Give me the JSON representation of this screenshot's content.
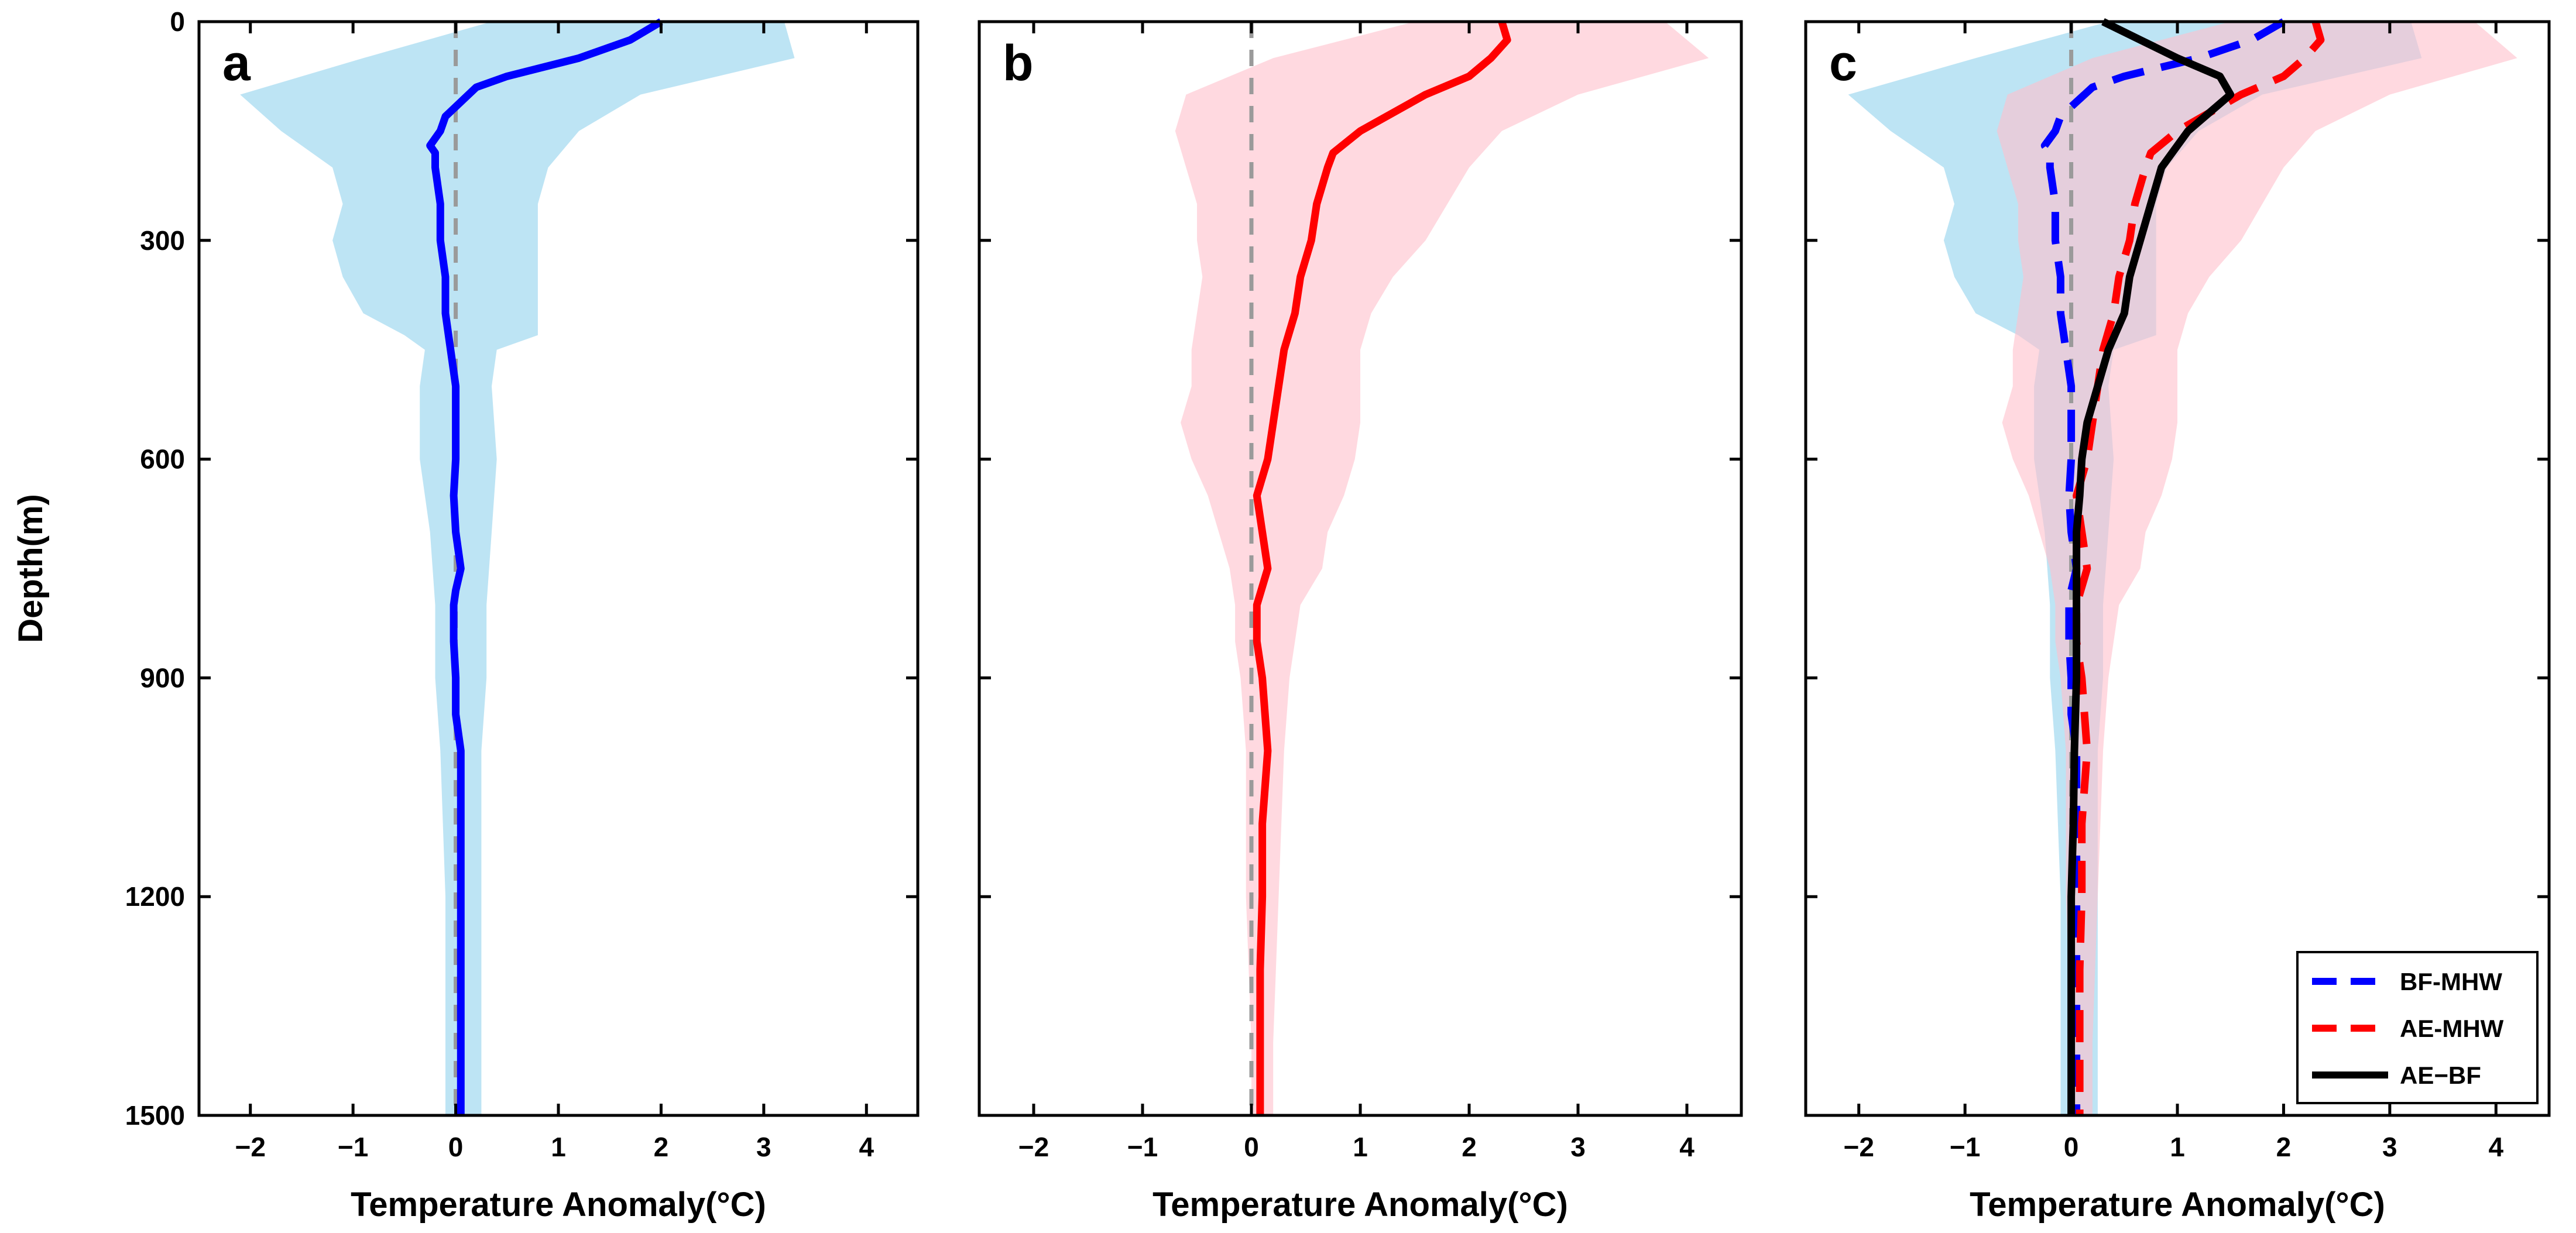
{
  "chart_data": [
    {
      "type": "line",
      "panel_label": "a",
      "xlabel": "Temperature Anomaly(°C)",
      "ylabel": "Depth(m)",
      "xlim": [
        -2.5,
        4.5
      ],
      "ylim": [
        0,
        1500
      ],
      "y_reversed": true,
      "xticks": [
        -2,
        -1,
        0,
        1,
        2,
        3,
        4
      ],
      "xtick_labels": [
        "−2",
        "−1",
        "0",
        "1",
        "2",
        "3",
        "4"
      ],
      "yticks": [
        0,
        300,
        600,
        900,
        1200,
        1500
      ],
      "ytick_labels": [
        "0",
        "300",
        "600",
        "900",
        "1200",
        "1500"
      ],
      "reference_line": {
        "x": 0,
        "style": "dashed",
        "color": "#9a9a9a"
      },
      "series": [
        {
          "name": "BF-MHW",
          "color": "#0000ff",
          "style": "solid",
          "depth": [
            0,
            25,
            50,
            75,
            90,
            110,
            130,
            150,
            170,
            180,
            200,
            250,
            300,
            350,
            400,
            430,
            450,
            500,
            550,
            600,
            650,
            700,
            750,
            780,
            800,
            850,
            900,
            950,
            1000,
            1100,
            1200,
            1300,
            1400,
            1500
          ],
          "values": [
            2.0,
            1.7,
            1.2,
            0.5,
            0.2,
            0.05,
            -0.1,
            -0.15,
            -0.25,
            -0.2,
            -0.2,
            -0.15,
            -0.15,
            -0.1,
            -0.1,
            -0.07,
            -0.05,
            0.0,
            0.0,
            0.0,
            -0.02,
            0.0,
            0.05,
            0.0,
            -0.02,
            -0.02,
            0.0,
            0.0,
            0.05,
            0.05,
            0.05,
            0.05,
            0.05,
            0.05
          ],
          "band": {
            "color": "#87ceeb",
            "opacity": 0.55,
            "depth": [
              0,
              50,
              100,
              150,
              200,
              250,
              300,
              350,
              400,
              430,
              450,
              500,
              600,
              700,
              800,
              900,
              1000,
              1200,
              1400,
              1500
            ],
            "lower": [
              0.35,
              -0.9,
              -2.1,
              -1.7,
              -1.2,
              -1.1,
              -1.2,
              -1.1,
              -0.9,
              -0.5,
              -0.3,
              -0.35,
              -0.35,
              -0.25,
              -0.2,
              -0.2,
              -0.15,
              -0.1,
              -0.1,
              -0.1
            ],
            "upper": [
              3.2,
              3.3,
              1.8,
              1.2,
              0.9,
              0.8,
              0.8,
              0.8,
              0.8,
              0.8,
              0.4,
              0.35,
              0.4,
              0.35,
              0.3,
              0.3,
              0.25,
              0.25,
              0.25,
              0.25
            ]
          }
        }
      ]
    },
    {
      "type": "line",
      "panel_label": "b",
      "xlabel": "Temperature Anomaly(°C)",
      "ylabel": "",
      "xlim": [
        -2.5,
        4.5
      ],
      "ylim": [
        0,
        1500
      ],
      "y_reversed": true,
      "xticks": [
        -2,
        -1,
        0,
        1,
        2,
        3,
        4
      ],
      "xtick_labels": [
        "−2",
        "−1",
        "0",
        "1",
        "2",
        "3",
        "4"
      ],
      "yticks": [
        0,
        300,
        600,
        900,
        1200,
        1500
      ],
      "ytick_labels": [],
      "reference_line": {
        "x": 0,
        "style": "dashed",
        "color": "#9a9a9a"
      },
      "series": [
        {
          "name": "AE-MHW",
          "color": "#ff0000",
          "style": "solid",
          "depth": [
            0,
            25,
            50,
            75,
            100,
            150,
            180,
            200,
            250,
            300,
            350,
            400,
            450,
            500,
            550,
            600,
            650,
            700,
            750,
            800,
            850,
            900,
            1000,
            1100,
            1200,
            1300,
            1400,
            1500
          ],
          "values": [
            2.3,
            2.35,
            2.2,
            2.0,
            1.6,
            1.0,
            0.75,
            0.7,
            0.6,
            0.55,
            0.45,
            0.4,
            0.3,
            0.25,
            0.2,
            0.15,
            0.05,
            0.1,
            0.15,
            0.05,
            0.05,
            0.1,
            0.15,
            0.1,
            0.1,
            0.08,
            0.08,
            0.08
          ],
          "band": {
            "color": "#ffc0cb",
            "opacity": 0.6,
            "depth": [
              0,
              50,
              100,
              150,
              200,
              250,
              300,
              350,
              400,
              450,
              500,
              550,
              600,
              650,
              700,
              750,
              800,
              850,
              900,
              1000,
              1200,
              1400,
              1500
            ],
            "lower": [
              1.5,
              0.2,
              -0.6,
              -0.7,
              -0.6,
              -0.5,
              -0.5,
              -0.45,
              -0.5,
              -0.55,
              -0.55,
              -0.65,
              -0.55,
              -0.4,
              -0.3,
              -0.2,
              -0.15,
              -0.15,
              -0.1,
              -0.05,
              -0.05,
              0.0,
              0.0
            ],
            "upper": [
              3.8,
              4.2,
              3.0,
              2.3,
              2.0,
              1.8,
              1.6,
              1.3,
              1.1,
              1.0,
              1.0,
              1.0,
              0.95,
              0.85,
              0.7,
              0.65,
              0.45,
              0.4,
              0.35,
              0.3,
              0.25,
              0.2,
              0.2
            ]
          }
        }
      ]
    },
    {
      "type": "line",
      "panel_label": "c",
      "xlabel": "Temperature Anomaly(°C)",
      "ylabel": "",
      "xlim": [
        -2.5,
        4.5
      ],
      "ylim": [
        0,
        1500
      ],
      "y_reversed": true,
      "xticks": [
        -2,
        -1,
        0,
        1,
        2,
        3,
        4
      ],
      "xtick_labels": [
        "−2",
        "−1",
        "0",
        "1",
        "2",
        "3",
        "4"
      ],
      "yticks": [
        0,
        300,
        600,
        900,
        1200,
        1500
      ],
      "ytick_labels": [],
      "reference_line": {
        "x": 0,
        "style": "dashed",
        "color": "#9a9a9a"
      },
      "legend": {
        "position": "bottom-right",
        "entries": [
          {
            "label": "BF-MHW",
            "color": "#0000ff",
            "style": "dashed"
          },
          {
            "label": "AE-MHW",
            "color": "#ff0000",
            "style": "dashed"
          },
          {
            "label": "AE−BF",
            "color": "#000000",
            "style": "solid"
          }
        ]
      },
      "series": [
        {
          "name": "BF-MHW",
          "color": "#0000ff",
          "style": "dashed",
          "depth": [
            0,
            25,
            50,
            75,
            90,
            110,
            130,
            150,
            170,
            180,
            200,
            250,
            300,
            350,
            400,
            430,
            450,
            500,
            550,
            600,
            650,
            700,
            750,
            780,
            800,
            850,
            900,
            950,
            1000,
            1100,
            1200,
            1300,
            1400,
            1500
          ],
          "values": [
            2.0,
            1.7,
            1.2,
            0.5,
            0.2,
            0.05,
            -0.1,
            -0.15,
            -0.25,
            -0.2,
            -0.2,
            -0.15,
            -0.15,
            -0.1,
            -0.1,
            -0.07,
            -0.05,
            0.0,
            0.0,
            0.0,
            -0.02,
            0.0,
            0.05,
            0.0,
            -0.02,
            -0.02,
            0.0,
            0.0,
            0.05,
            0.05,
            0.05,
            0.05,
            0.05,
            0.05
          ],
          "band": {
            "color": "#87ceeb",
            "opacity": 0.55,
            "depth": [
              0,
              50,
              100,
              150,
              200,
              250,
              300,
              350,
              400,
              430,
              450,
              500,
              600,
              700,
              800,
              900,
              1000,
              1200,
              1400,
              1500
            ],
            "lower": [
              0.35,
              -0.9,
              -2.1,
              -1.7,
              -1.2,
              -1.1,
              -1.2,
              -1.1,
              -0.9,
              -0.5,
              -0.3,
              -0.35,
              -0.35,
              -0.25,
              -0.2,
              -0.2,
              -0.15,
              -0.1,
              -0.1,
              -0.1
            ],
            "upper": [
              3.2,
              3.3,
              1.8,
              1.2,
              0.9,
              0.8,
              0.8,
              0.8,
              0.8,
              0.8,
              0.4,
              0.35,
              0.4,
              0.35,
              0.3,
              0.3,
              0.25,
              0.25,
              0.25,
              0.25
            ]
          }
        },
        {
          "name": "AE-MHW",
          "color": "#ff0000",
          "style": "dashed",
          "depth": [
            0,
            25,
            50,
            75,
            100,
            150,
            180,
            200,
            250,
            300,
            350,
            400,
            450,
            500,
            550,
            600,
            650,
            700,
            750,
            800,
            850,
            900,
            1000,
            1100,
            1200,
            1300,
            1400,
            1500
          ],
          "values": [
            2.3,
            2.35,
            2.2,
            2.0,
            1.6,
            1.0,
            0.75,
            0.7,
            0.6,
            0.55,
            0.45,
            0.4,
            0.3,
            0.25,
            0.2,
            0.15,
            0.05,
            0.1,
            0.15,
            0.05,
            0.05,
            0.1,
            0.15,
            0.1,
            0.1,
            0.08,
            0.08,
            0.08
          ],
          "band": {
            "color": "#ffc0cb",
            "opacity": 0.6,
            "depth": [
              0,
              50,
              100,
              150,
              200,
              250,
              300,
              350,
              400,
              450,
              500,
              550,
              600,
              650,
              700,
              750,
              800,
              850,
              900,
              1000,
              1200,
              1400,
              1500
            ],
            "lower": [
              1.5,
              0.2,
              -0.6,
              -0.7,
              -0.6,
              -0.5,
              -0.5,
              -0.45,
              -0.5,
              -0.55,
              -0.55,
              -0.65,
              -0.55,
              -0.4,
              -0.3,
              -0.2,
              -0.15,
              -0.15,
              -0.1,
              -0.05,
              -0.05,
              0.0,
              0.0
            ],
            "upper": [
              3.8,
              4.2,
              3.0,
              2.3,
              2.0,
              1.8,
              1.6,
              1.3,
              1.1,
              1.0,
              1.0,
              1.0,
              0.95,
              0.85,
              0.7,
              0.65,
              0.45,
              0.4,
              0.35,
              0.3,
              0.25,
              0.2,
              0.2
            ]
          }
        },
        {
          "name": "AE−BF",
          "color": "#000000",
          "style": "solid",
          "depth": [
            0,
            25,
            50,
            75,
            100,
            150,
            200,
            250,
            300,
            350,
            400,
            450,
            500,
            550,
            600,
            650,
            700,
            800,
            900,
            1000,
            1100,
            1200,
            1300,
            1400,
            1500
          ],
          "values": [
            0.3,
            0.65,
            1.0,
            1.4,
            1.5,
            1.1,
            0.85,
            0.75,
            0.65,
            0.55,
            0.5,
            0.35,
            0.25,
            0.15,
            0.1,
            0.08,
            0.05,
            0.05,
            0.05,
            0.03,
            0.02,
            0.0,
            0.0,
            0.0,
            0.0
          ]
        }
      ]
    }
  ]
}
